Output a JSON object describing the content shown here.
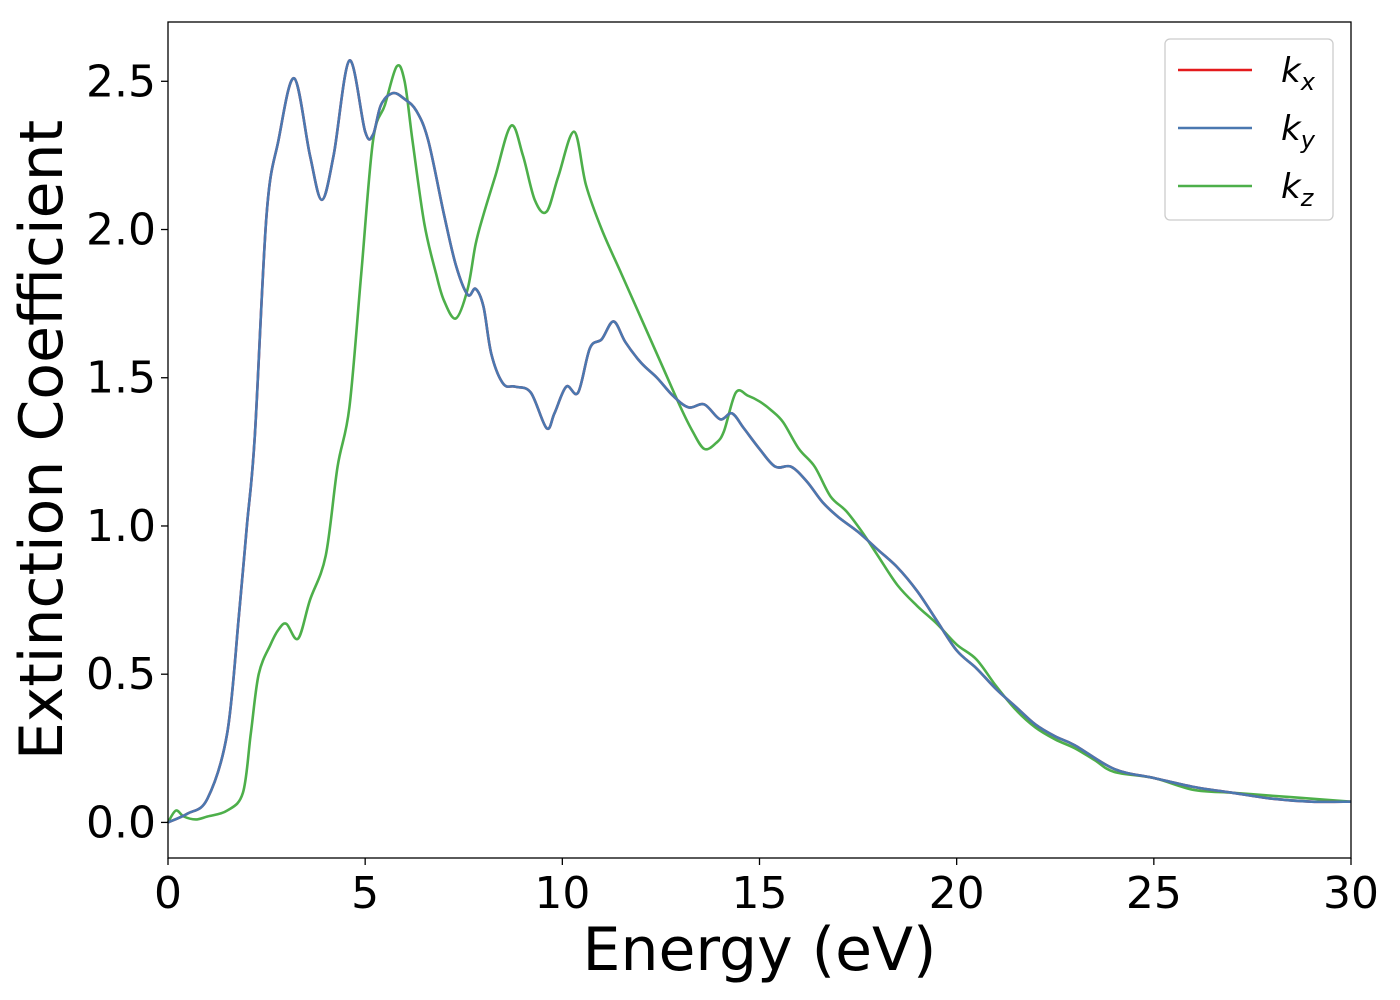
{
  "chart_data": {
    "type": "line",
    "xlabel": "Energy (eV)",
    "ylabel": "Extinction Coefficient",
    "xlim": [
      0,
      30
    ],
    "ylim": [
      -0.12,
      2.7
    ],
    "xticks": [
      0,
      5,
      10,
      15,
      20,
      25,
      30
    ],
    "yticks": [
      0.0,
      0.5,
      1.0,
      1.5,
      2.0,
      2.5
    ],
    "xtick_labels": [
      "0",
      "5",
      "10",
      "15",
      "20",
      "25",
      "30"
    ],
    "ytick_labels": [
      "0.0",
      "0.5",
      "1.0",
      "1.5",
      "2.0",
      "2.5"
    ],
    "legend_position": "top-right",
    "grid": false,
    "series": [
      {
        "name": "k_x",
        "label_main": "k",
        "label_sub": "x",
        "color": "#e41a1c",
        "x": [
          0,
          0.5,
          1.0,
          1.5,
          1.8,
          2.0,
          2.2,
          2.5,
          2.8,
          3.2,
          3.6,
          3.9,
          4.2,
          4.6,
          5.0,
          5.2,
          5.4,
          5.7,
          6.0,
          6.3,
          6.6,
          7.0,
          7.3,
          7.6,
          7.8,
          8.0,
          8.2,
          8.5,
          8.8,
          9.2,
          9.6,
          9.8,
          10.1,
          10.4,
          10.7,
          11.0,
          11.3,
          11.6,
          12.0,
          12.4,
          12.8,
          13.2,
          13.6,
          14.0,
          14.3,
          14.6,
          15.0,
          15.4,
          15.8,
          16.2,
          16.6,
          17.0,
          17.5,
          18.0,
          18.5,
          19.0,
          19.5,
          20.0,
          20.5,
          21.0,
          21.5,
          22.0,
          22.5,
          23.0,
          24.0,
          25.0,
          26.0,
          27.0,
          28.0,
          29.0,
          30.0
        ],
        "values": [
          0.0,
          0.03,
          0.08,
          0.3,
          0.7,
          1.0,
          1.3,
          2.05,
          2.3,
          2.51,
          2.25,
          2.1,
          2.25,
          2.57,
          2.33,
          2.32,
          2.42,
          2.46,
          2.44,
          2.4,
          2.3,
          2.05,
          1.88,
          1.78,
          1.8,
          1.74,
          1.58,
          1.48,
          1.47,
          1.45,
          1.33,
          1.38,
          1.47,
          1.45,
          1.6,
          1.63,
          1.69,
          1.62,
          1.55,
          1.5,
          1.44,
          1.4,
          1.41,
          1.36,
          1.38,
          1.33,
          1.26,
          1.2,
          1.2,
          1.15,
          1.08,
          1.03,
          0.98,
          0.92,
          0.86,
          0.78,
          0.68,
          0.58,
          0.52,
          0.45,
          0.39,
          0.33,
          0.29,
          0.26,
          0.18,
          0.15,
          0.12,
          0.1,
          0.08,
          0.07,
          0.07
        ]
      },
      {
        "name": "k_y",
        "label_main": "k",
        "label_sub": "y",
        "color": "#4a78b0",
        "x": [
          0,
          0.5,
          1.0,
          1.5,
          1.8,
          2.0,
          2.2,
          2.5,
          2.8,
          3.2,
          3.6,
          3.9,
          4.2,
          4.6,
          5.0,
          5.2,
          5.4,
          5.7,
          6.0,
          6.3,
          6.6,
          7.0,
          7.3,
          7.6,
          7.8,
          8.0,
          8.2,
          8.5,
          8.8,
          9.2,
          9.6,
          9.8,
          10.1,
          10.4,
          10.7,
          11.0,
          11.3,
          11.6,
          12.0,
          12.4,
          12.8,
          13.2,
          13.6,
          14.0,
          14.3,
          14.6,
          15.0,
          15.4,
          15.8,
          16.2,
          16.6,
          17.0,
          17.5,
          18.0,
          18.5,
          19.0,
          19.5,
          20.0,
          20.5,
          21.0,
          21.5,
          22.0,
          22.5,
          23.0,
          24.0,
          25.0,
          26.0,
          27.0,
          28.0,
          29.0,
          30.0
        ],
        "values": [
          0.0,
          0.03,
          0.08,
          0.3,
          0.7,
          1.0,
          1.3,
          2.05,
          2.3,
          2.51,
          2.25,
          2.1,
          2.25,
          2.57,
          2.33,
          2.32,
          2.42,
          2.46,
          2.44,
          2.4,
          2.3,
          2.05,
          1.88,
          1.78,
          1.8,
          1.74,
          1.58,
          1.48,
          1.47,
          1.45,
          1.33,
          1.38,
          1.47,
          1.45,
          1.6,
          1.63,
          1.69,
          1.62,
          1.55,
          1.5,
          1.44,
          1.4,
          1.41,
          1.36,
          1.38,
          1.33,
          1.26,
          1.2,
          1.2,
          1.15,
          1.08,
          1.03,
          0.98,
          0.92,
          0.86,
          0.78,
          0.68,
          0.58,
          0.52,
          0.45,
          0.39,
          0.33,
          0.29,
          0.26,
          0.18,
          0.15,
          0.12,
          0.1,
          0.08,
          0.07,
          0.07
        ]
      },
      {
        "name": "k_z",
        "label_main": "k",
        "label_sub": "z",
        "color": "#4daf4a",
        "x": [
          0,
          0.2,
          0.4,
          0.7,
          1.0,
          1.5,
          1.9,
          2.1,
          2.3,
          2.6,
          2.8,
          3.0,
          3.3,
          3.6,
          4.0,
          4.3,
          4.6,
          4.9,
          5.2,
          5.5,
          5.8,
          6.0,
          6.2,
          6.5,
          6.8,
          7.0,
          7.3,
          7.6,
          7.8,
          8.0,
          8.3,
          8.7,
          9.0,
          9.3,
          9.6,
          9.9,
          10.3,
          10.6,
          11.0,
          11.5,
          12.0,
          12.5,
          13.0,
          13.3,
          13.6,
          13.9,
          14.1,
          14.4,
          14.7,
          15.0,
          15.3,
          15.6,
          16.0,
          16.4,
          16.8,
          17.2,
          17.6,
          18.0,
          18.5,
          19.0,
          19.5,
          20.0,
          20.5,
          21.0,
          21.5,
          22.0,
          22.5,
          23.0,
          23.5,
          24.0,
          25.0,
          26.0,
          27.0,
          28.0,
          29.0,
          30.0
        ],
        "values": [
          0.0,
          0.04,
          0.02,
          0.01,
          0.02,
          0.04,
          0.1,
          0.3,
          0.5,
          0.6,
          0.65,
          0.67,
          0.62,
          0.75,
          0.9,
          1.2,
          1.4,
          1.85,
          2.3,
          2.42,
          2.55,
          2.5,
          2.3,
          2.02,
          1.85,
          1.76,
          1.7,
          1.8,
          1.95,
          2.05,
          2.18,
          2.35,
          2.25,
          2.1,
          2.06,
          2.18,
          2.33,
          2.15,
          2.0,
          1.85,
          1.7,
          1.55,
          1.4,
          1.32,
          1.26,
          1.28,
          1.32,
          1.45,
          1.44,
          1.42,
          1.39,
          1.35,
          1.26,
          1.2,
          1.1,
          1.05,
          0.98,
          0.9,
          0.8,
          0.73,
          0.67,
          0.6,
          0.55,
          0.46,
          0.38,
          0.32,
          0.28,
          0.25,
          0.21,
          0.17,
          0.15,
          0.11,
          0.1,
          0.09,
          0.08,
          0.07
        ]
      }
    ]
  }
}
